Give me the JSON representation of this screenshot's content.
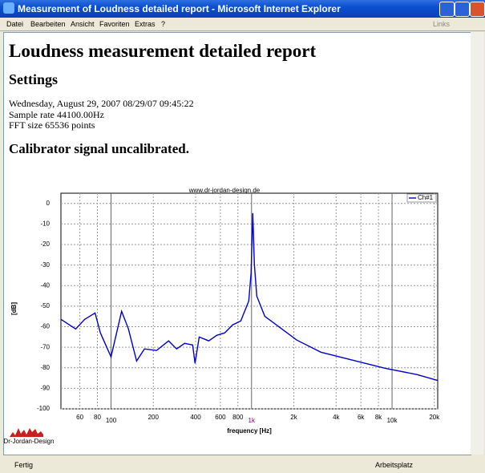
{
  "window": {
    "title": "Measurement of Loudness detailed report - Microsoft Internet Explorer",
    "menu": [
      "Datei",
      "Bearbeiten",
      "Ansicht",
      "Favoriten",
      "Extras",
      "?"
    ],
    "links": "Links"
  },
  "report": {
    "title": "Loudness measurement detailed report",
    "settings_heading": "Settings",
    "settings_lines": [
      "Wednesday, August 29, 2007 08/29/07 09:45:22",
      "Sample rate 44100.00Hz",
      "FFT size 65536 points"
    ],
    "calibration_heading": "Calibrator signal uncalibrated.",
    "logo": "Dr-Jordan-Design"
  },
  "chart_data": {
    "type": "line",
    "watermark": "www.dr-jordan-design.de",
    "x_label": "frequency [Hz]",
    "y_label": "[dB]",
    "x_scale": "log",
    "grid": true,
    "legend": "top-right",
    "xlim": [
      44,
      21130
    ],
    "ylim": [
      -100,
      5
    ],
    "xticks": [
      60,
      80,
      100,
      200,
      400,
      600,
      800,
      {
        "value": 1000,
        "label": "1k"
      },
      {
        "value": 2000,
        "label": "2k"
      },
      {
        "value": 4000,
        "label": "4k"
      },
      {
        "value": 6000,
        "label": "6k"
      },
      {
        "value": 8000,
        "label": "8k"
      },
      {
        "value": 10000,
        "label": "10k"
      },
      {
        "value": 20000,
        "label": "20k"
      }
    ],
    "yticks": [
      0,
      -10,
      -20,
      -30,
      -40,
      -50,
      -60,
      -70,
      -80,
      -90,
      -100
    ],
    "series": [
      {
        "name": "Ch#1",
        "color": "#0000cc",
        "x": [
          44,
          56,
          65,
          77,
          84,
          100,
          119,
          133,
          152,
          173,
          211,
          257,
          293,
          334,
          381,
          396,
          424,
          496,
          565,
          644,
          734,
          838,
          955,
          993,
          1020,
          1048,
          1089,
          1242,
          1614,
          2099,
          3112,
          5260,
          8890,
          15020,
          21130
        ],
        "values": [
          -56.4,
          -61.1,
          -56.4,
          -53.3,
          -63,
          -74.7,
          -52.5,
          -61.1,
          -76.7,
          -70.8,
          -71.6,
          -66.9,
          -70.8,
          -68.1,
          -68.9,
          -77.8,
          -65,
          -66.9,
          -64.2,
          -63,
          -59.1,
          -57.2,
          -47.5,
          -33.9,
          -4.7,
          -29.6,
          -45.1,
          -54.9,
          -60.7,
          -66.5,
          -72.4,
          -76.3,
          -80.2,
          -83.3,
          -86.2
        ]
      }
    ]
  },
  "status": {
    "left": "Fertig",
    "right": "Arbeitsplatz"
  }
}
